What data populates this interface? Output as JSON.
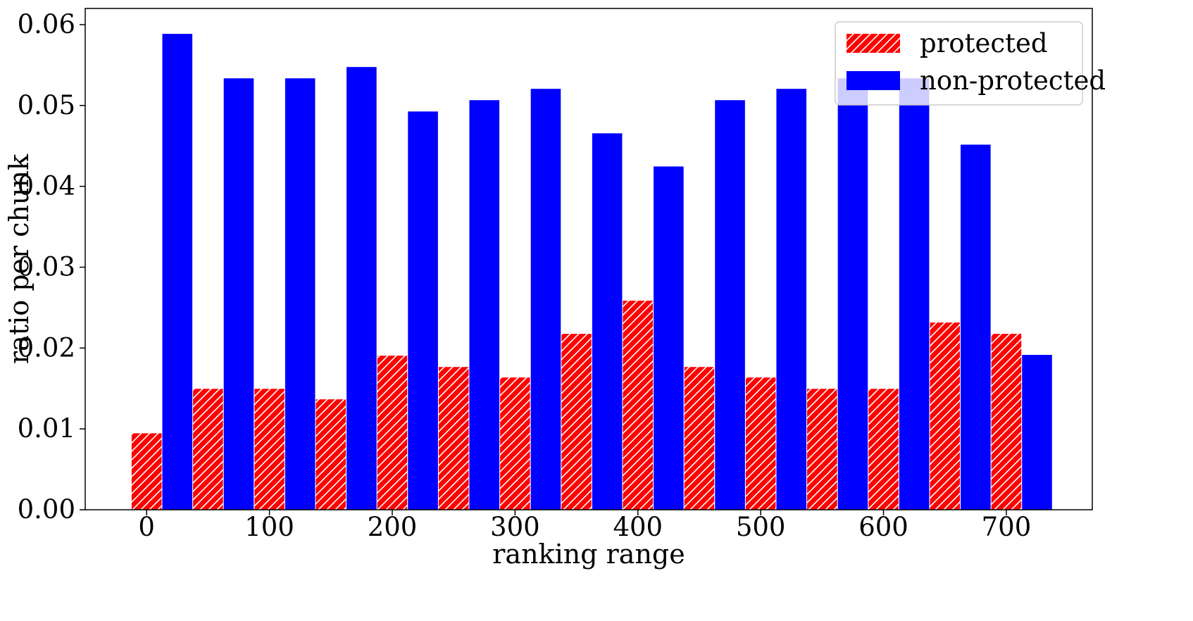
{
  "chart_data": {
    "type": "bar",
    "title": "",
    "xlabel": "ranking range",
    "ylabel": "ratio per chunk",
    "ylim": [
      0,
      0.062
    ],
    "xlim": [
      -50,
      770
    ],
    "x_ticks": [
      0,
      100,
      200,
      300,
      400,
      500,
      600,
      700
    ],
    "y_ticks": [
      0.0,
      0.01,
      0.02,
      0.03,
      0.04,
      0.05,
      0.06
    ],
    "x_tick_labels": [
      "0",
      "100",
      "200",
      "300",
      "400",
      "500",
      "600",
      "700"
    ],
    "y_tick_labels": [
      "0.00",
      "0.01",
      "0.02",
      "0.03",
      "0.04",
      "0.05",
      "0.06"
    ],
    "x": [
      0,
      50,
      100,
      150,
      200,
      250,
      300,
      350,
      400,
      450,
      500,
      550,
      600,
      650,
      700
    ],
    "bar_width": 25,
    "grid": false,
    "legend_position": "upper right",
    "series": [
      {
        "name": "protected",
        "color": "#ff0000",
        "hatch": "////",
        "values": [
          0.0095,
          0.015,
          0.015,
          0.0137,
          0.0191,
          0.0177,
          0.0164,
          0.0218,
          0.0259,
          0.0177,
          0.0164,
          0.015,
          0.015,
          0.0232,
          0.0218
        ]
      },
      {
        "name": "non-protected",
        "color": "#0000ff",
        "values": [
          0.0589,
          0.0534,
          0.0534,
          0.0548,
          0.0493,
          0.0507,
          0.0521,
          0.0466,
          0.0425,
          0.0507,
          0.0521,
          0.0534,
          0.0534,
          0.0452,
          0.0192
        ]
      }
    ]
  }
}
